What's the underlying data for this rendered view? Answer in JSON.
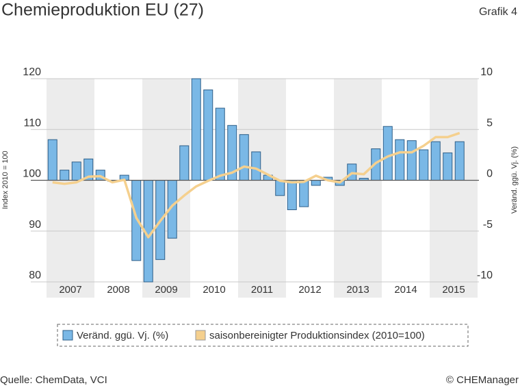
{
  "chart_data": {
    "type": "combo",
    "title": "Chemieproduktion EU (27)",
    "figure_label": "Grafik 4",
    "y_label": "Index 2010 = 100",
    "y2_label": "Veränd. ggü. Vj. (%)",
    "source": "Quelle: ChemData, VCI",
    "copyright": "© CHEManager",
    "year_labels": [
      "2007",
      "2008",
      "2009",
      "2010",
      "2011",
      "2012",
      "2013",
      "2014",
      "2015"
    ],
    "ylim": [
      80,
      120
    ],
    "yticks": [
      80,
      90,
      100,
      110,
      120
    ],
    "y2lim": [
      -10,
      10
    ],
    "y2ticks": [
      -10,
      -5,
      0,
      5,
      10
    ],
    "grid": true,
    "series": [
      {
        "name": "Veränd. ggü. Vj. (%)",
        "type": "bar",
        "axis": "y2",
        "color": "#7ab8e6",
        "values": [
          4.0,
          1.0,
          1.8,
          2.1,
          1.0,
          -0.1,
          0.5,
          -7.9,
          -10.0,
          -7.8,
          -5.7,
          3.4,
          10.0,
          8.9,
          7.1,
          5.4,
          4.5,
          2.8,
          0.5,
          -1.5,
          -2.9,
          -2.6,
          -0.5,
          0.3,
          -0.5,
          1.6,
          0.2,
          3.1,
          5.3,
          4.0,
          3.9,
          3.0,
          3.8,
          2.7,
          3.8,
          null
        ]
      },
      {
        "name": "saisonbereinigter Produktionsindex (2010=100)",
        "type": "line",
        "axis": "y",
        "color": "#f5d08e",
        "values": [
          99.6,
          99.3,
          99.6,
          100.7,
          100.8,
          99.6,
          100.1,
          92.6,
          88.8,
          92.0,
          95.0,
          97.0,
          98.8,
          99.9,
          100.9,
          101.5,
          102.7,
          102.3,
          101.1,
          99.9,
          99.6,
          99.7,
          100.9,
          100.0,
          99.6,
          101.4,
          101.2,
          103.4,
          104.7,
          105.5,
          105.5,
          106.8,
          108.5,
          108.5,
          109.3,
          null
        ]
      }
    ]
  }
}
